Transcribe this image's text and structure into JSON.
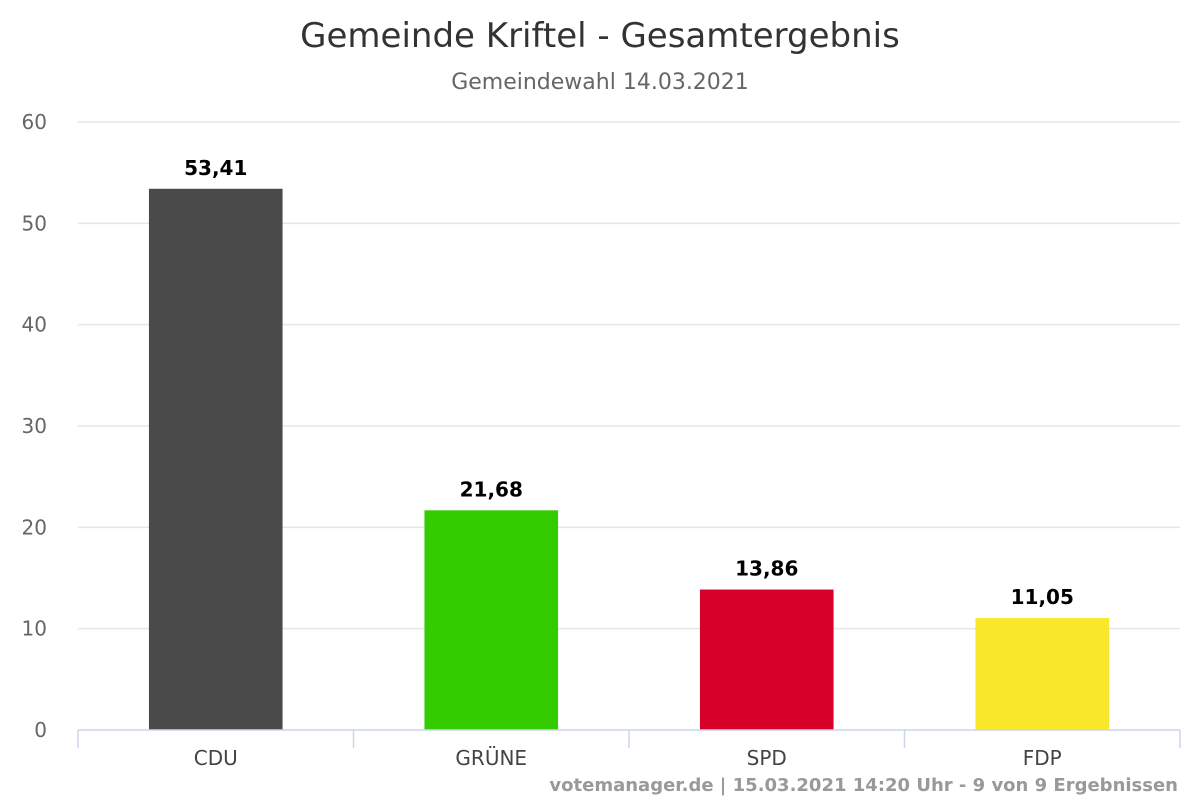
{
  "chart_data": {
    "type": "bar",
    "title": "Gemeinde Kriftel - Gesamtergebnis",
    "subtitle": "Gemeindewahl 14.03.2021",
    "categories": [
      "CDU",
      "GRÜNE",
      "SPD",
      "FDP"
    ],
    "values": [
      53.41,
      21.68,
      13.86,
      11.05
    ],
    "data_labels": [
      "53,41",
      "21,68",
      "13,86",
      "11,05"
    ],
    "colors": [
      "#4a4a4a",
      "#33cc00",
      "#d6002a",
      "#f9e72c"
    ],
    "ylim": [
      0,
      60
    ],
    "yticks": [
      0,
      10,
      20,
      30,
      40,
      50,
      60
    ],
    "xlabel": "",
    "ylabel": "",
    "grid": true,
    "legend": "none"
  },
  "credits": "votemanager.de | 15.03.2021 14:20 Uhr - 9 von 9 Ergebnissen"
}
